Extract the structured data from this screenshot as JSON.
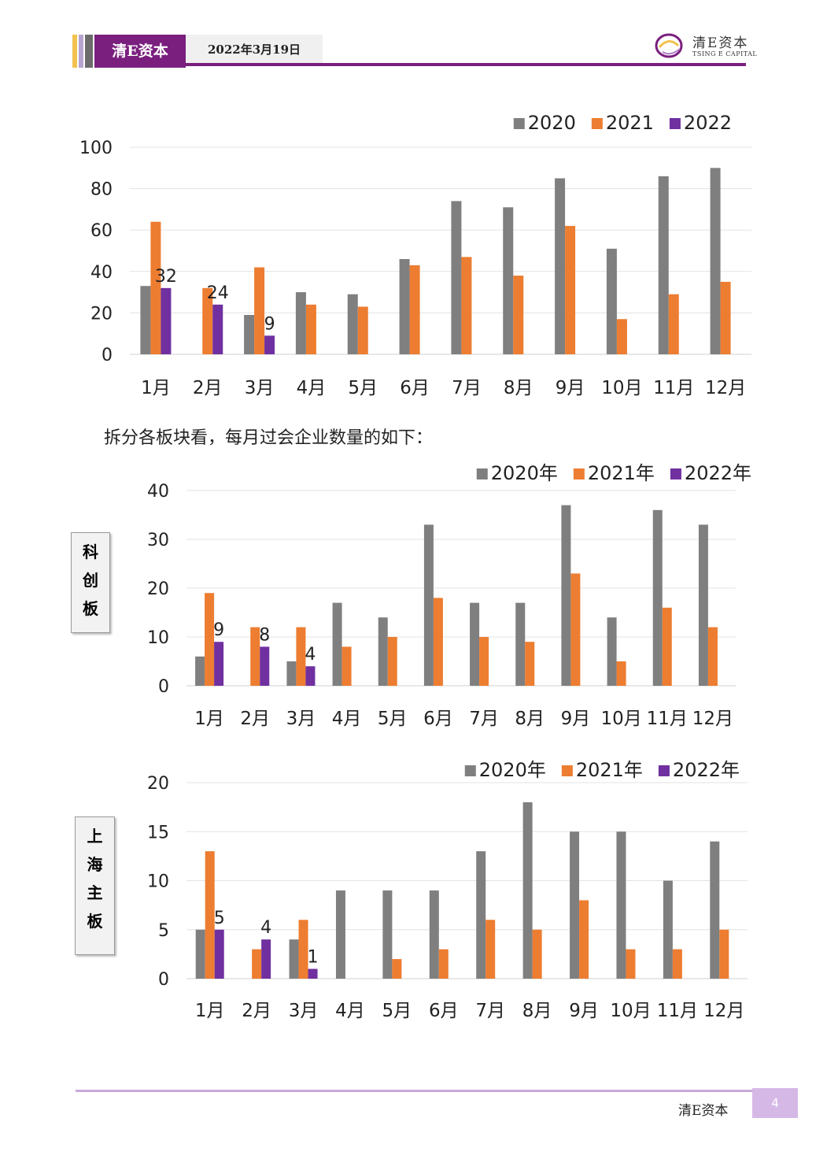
{
  "header": {
    "brand": "清E资本",
    "date": "2022年3月19日",
    "logo_cn": "清E资本",
    "logo_en": "TSING E CAPITAL",
    "colors": {
      "primary": "#7a1f7e",
      "gold": "#f2c14e",
      "accent": "#9b59b6"
    }
  },
  "paragraph": "拆分各板块看，每月过会企业数量的如下：",
  "labels": {
    "star": [
      "科",
      "创",
      "板"
    ],
    "sh": [
      "上",
      "海",
      "主",
      "板"
    ]
  },
  "footer": {
    "brand": "清E资本",
    "page": "4"
  },
  "chart_data": [
    {
      "type": "bar",
      "categories": [
        "1月",
        "2月",
        "3月",
        "4月",
        "5月",
        "6月",
        "7月",
        "8月",
        "9月",
        "10月",
        "11月",
        "12月"
      ],
      "series": [
        {
          "name": "2020",
          "color": "#7f7f7f",
          "values": [
            33,
            0,
            19,
            30,
            29,
            46,
            74,
            71,
            85,
            51,
            86,
            90
          ]
        },
        {
          "name": "2021",
          "color": "#ed7d31",
          "values": [
            64,
            32,
            42,
            24,
            23,
            43,
            47,
            38,
            62,
            17,
            29,
            35
          ]
        },
        {
          "name": "2022",
          "color": "#7030a0",
          "values": [
            32,
            24,
            9,
            null,
            null,
            null,
            null,
            null,
            null,
            null,
            null,
            null
          ]
        }
      ],
      "data_labels_series": "2022",
      "ylim": [
        0,
        100
      ],
      "yticks": [
        0,
        20,
        40,
        60,
        80,
        100
      ],
      "legend": "top-right",
      "grid": true
    },
    {
      "type": "bar",
      "categories": [
        "1月",
        "2月",
        "3月",
        "4月",
        "5月",
        "6月",
        "7月",
        "8月",
        "9月",
        "10月",
        "11月",
        "12月"
      ],
      "series": [
        {
          "name": "2020年",
          "color": "#7f7f7f",
          "values": [
            6,
            0,
            5,
            17,
            14,
            33,
            17,
            17,
            37,
            14,
            36,
            33
          ]
        },
        {
          "name": "2021年",
          "color": "#ed7d31",
          "values": [
            19,
            12,
            12,
            8,
            10,
            18,
            10,
            9,
            23,
            5,
            16,
            12
          ]
        },
        {
          "name": "2022年",
          "color": "#7030a0",
          "values": [
            9,
            8,
            4,
            null,
            null,
            null,
            null,
            null,
            null,
            null,
            null,
            null
          ]
        }
      ],
      "data_labels_series": "2022年",
      "ylim": [
        0,
        40
      ],
      "yticks": [
        0,
        10,
        20,
        30,
        40
      ],
      "legend": "top-right",
      "grid": true
    },
    {
      "type": "bar",
      "categories": [
        "1月",
        "2月",
        "3月",
        "4月",
        "5月",
        "6月",
        "7月",
        "8月",
        "9月",
        "10月",
        "11月",
        "12月"
      ],
      "series": [
        {
          "name": "2020年",
          "color": "#7f7f7f",
          "values": [
            5,
            0,
            4,
            9,
            9,
            9,
            13,
            18,
            15,
            15,
            10,
            14
          ]
        },
        {
          "name": "2021年",
          "color": "#ed7d31",
          "values": [
            13,
            3,
            6,
            0,
            2,
            3,
            6,
            5,
            8,
            3,
            3,
            5
          ]
        },
        {
          "name": "2022年",
          "color": "#7030a0",
          "values": [
            5,
            4,
            1,
            null,
            null,
            null,
            null,
            null,
            null,
            null,
            null,
            null
          ]
        }
      ],
      "data_labels_series": "2022年",
      "ylim": [
        0,
        20
      ],
      "yticks": [
        0,
        5,
        10,
        15,
        20
      ],
      "legend": "top-right",
      "grid": true
    }
  ]
}
